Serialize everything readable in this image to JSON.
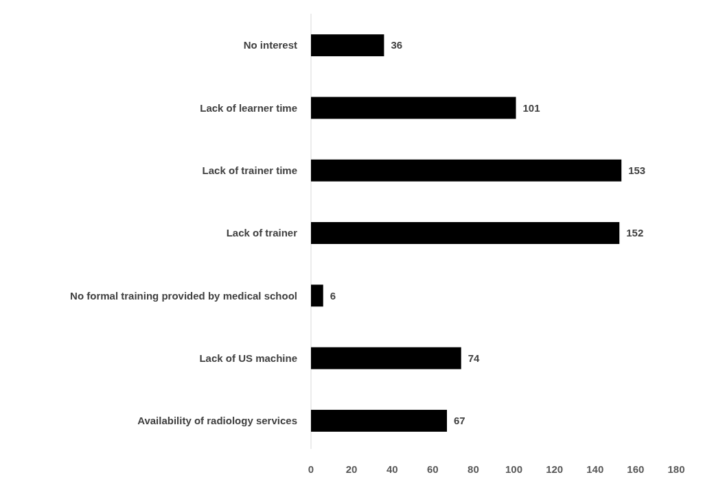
{
  "chart_data": {
    "type": "bar",
    "orientation": "horizontal",
    "categories": [
      "No interest",
      "Lack of learner time",
      "Lack of trainer time",
      "Lack of trainer",
      "No formal training provided by medical school",
      "Lack of US machine",
      "Availability of radiology services"
    ],
    "values": [
      36,
      101,
      153,
      152,
      6,
      74,
      67
    ],
    "color": "#000000",
    "xlim": [
      0,
      180
    ],
    "xticks": [
      0,
      20,
      40,
      60,
      80,
      100,
      120,
      140,
      160,
      180
    ],
    "data_labels": true
  }
}
